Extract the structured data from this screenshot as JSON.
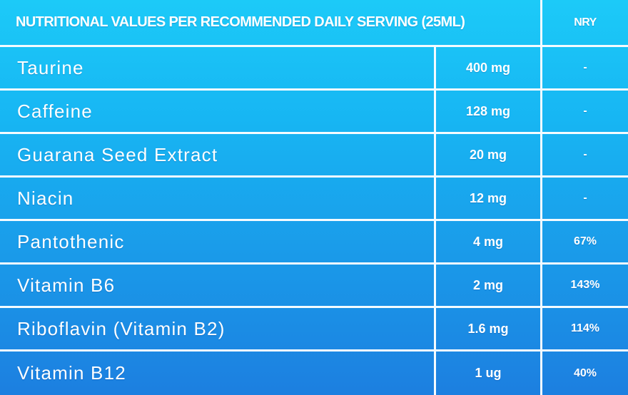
{
  "header": {
    "title": "NUTRITIONAL VALUES PER RECOMMENDED DAILY SERVING (25ML)",
    "nry": "NRY"
  },
  "table": {
    "rows": [
      [
        "Taurine",
        "400 mg",
        "-"
      ],
      [
        "Caffeine",
        "128 mg",
        "-"
      ],
      [
        "Guarana Seed Extract",
        "20 mg",
        "-"
      ],
      [
        "Niacin",
        "12 mg",
        "-"
      ],
      [
        "Pantothenic",
        "4 mg",
        "67%"
      ],
      [
        "Vitamin B6",
        "2 mg",
        "143%"
      ],
      [
        "Riboflavin (Vitamin B2)",
        "1.6 mg",
        "114%"
      ],
      [
        "Vitamin B12",
        "1 ug",
        "40%"
      ]
    ]
  }
}
